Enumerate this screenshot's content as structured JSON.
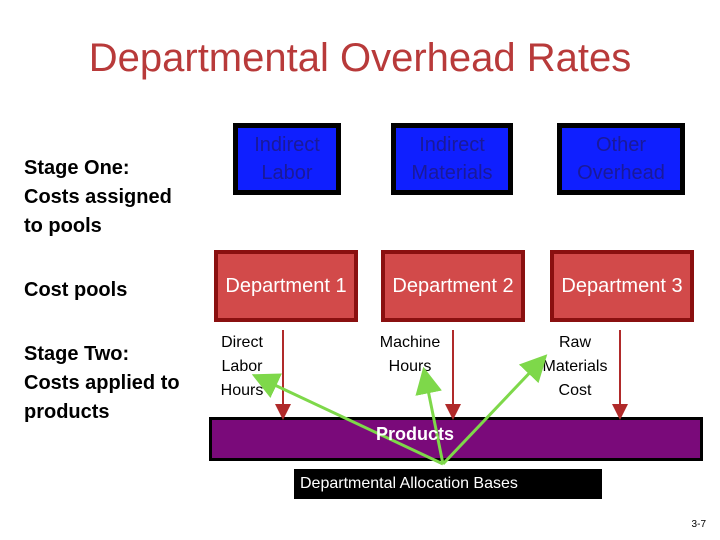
{
  "title": "Departmental Overhead Rates",
  "stages": {
    "one": "Stage One: Costs assigned to pools",
    "pools": "Cost pools",
    "two": "Stage Two: Costs applied to products"
  },
  "cost_categories": [
    {
      "label": "Indirect Labor"
    },
    {
      "label": "Indirect Materials"
    },
    {
      "label": "Other Overhead"
    }
  ],
  "departments": [
    {
      "label": "Department 1"
    },
    {
      "label": "Department 2"
    },
    {
      "label": "Department 3"
    }
  ],
  "allocation_bases": [
    {
      "label": "Direct Labor Hours"
    },
    {
      "label": "Machine Hours"
    },
    {
      "label": "Raw Materials Cost"
    }
  ],
  "products": "Products",
  "allocation_caption": "Departmental Allocation Bases",
  "footer": "3-7",
  "colors": {
    "title": "#b83a3a",
    "cost_box": "#0f1fff",
    "dept_box": "#d24a4a",
    "products_bar": "#7a0a7a",
    "connector": "#7ed84a"
  }
}
